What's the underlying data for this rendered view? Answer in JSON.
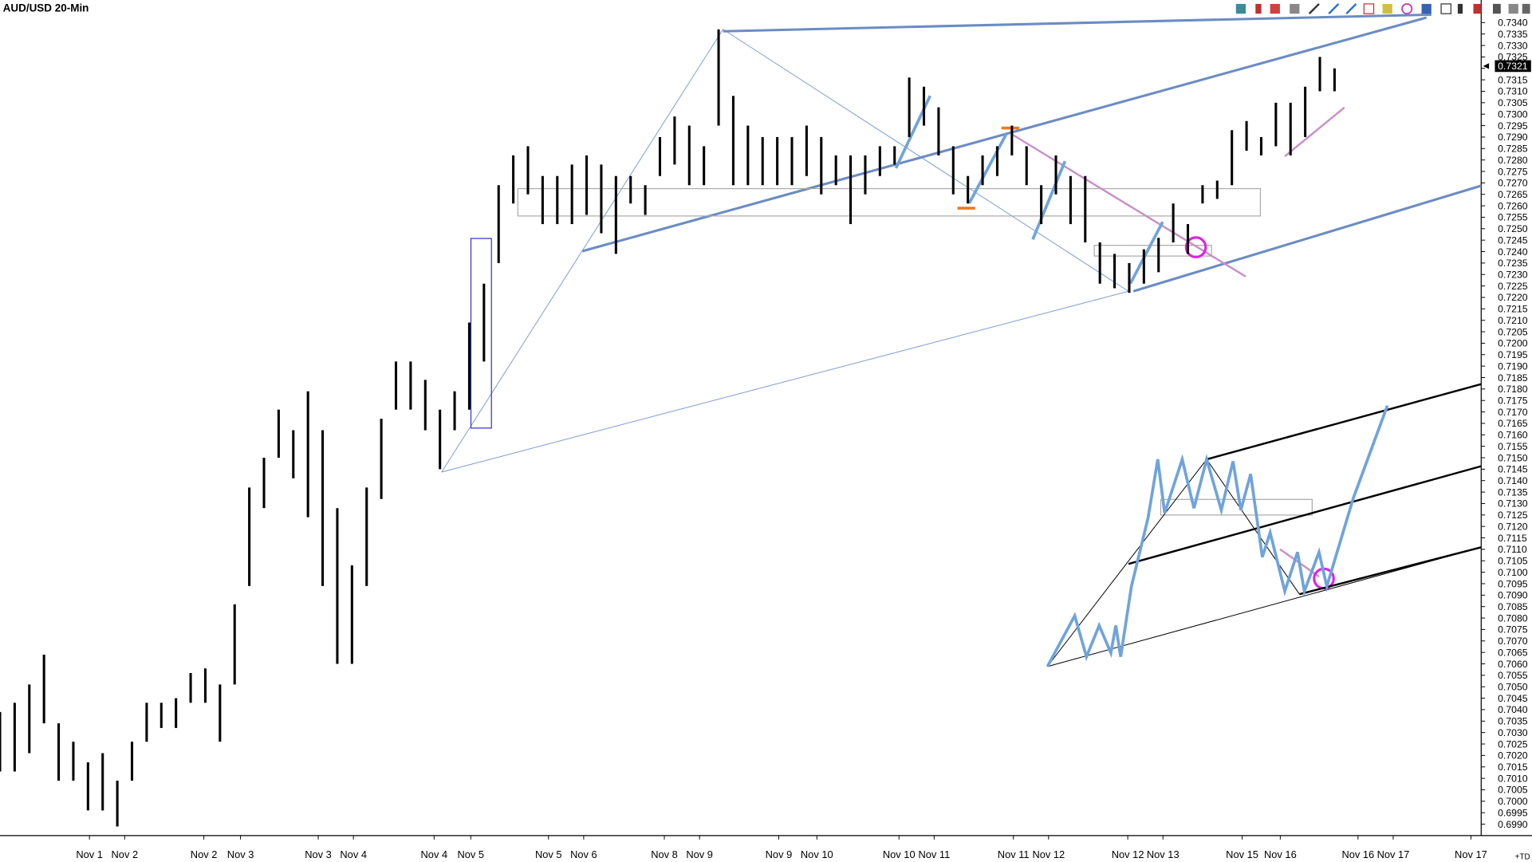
{
  "chart_data": {
    "type": "range",
    "title": "AUD/USD 20-Min",
    "high": [
      0.7039,
      0.7043,
      0.7051,
      0.7064,
      0.7034,
      0.7026,
      0.7017,
      0.7021,
      0.7009,
      0.7026,
      0.7043,
      0.7043,
      0.7045,
      0.7056,
      0.7058,
      0.7051,
      0.7086,
      0.7137,
      0.715,
      0.7171,
      0.7162,
      0.7179,
      0.7162,
      0.7128,
      0.7103,
      0.7137,
      0.7167,
      0.7192,
      0.7192,
      0.7184,
      0.7171,
      0.7179,
      0.7209,
      0.7226,
      0.7269,
      0.7282,
      0.7286,
      0.7273,
      0.7273,
      0.7278,
      0.7282,
      0.7278,
      0.7273,
      0.7273,
      0.7269,
      0.729,
      0.7299,
      0.7295,
      0.7286,
      0.7337,
      0.7308,
      0.7295,
      0.729,
      0.729,
      0.729,
      0.7295,
      0.729,
      0.7282,
      0.7282,
      0.7282,
      0.7286,
      0.7286,
      0.7316,
      0.7312,
      0.7303,
      0.7286,
      0.7273,
      0.7282,
      0.7286,
      0.7295,
      0.7286,
      0.7269,
      0.7282,
      0.7273,
      0.7273,
      0.7244,
      0.7239,
      0.7235,
      0.7241,
      0.7246,
      0.7261,
      0.7252,
      0.7269,
      0.7271,
      0.7293,
      0.7297,
      0.729,
      0.7305,
      0.7305,
      0.7312,
      0.7325,
      0.732
    ],
    "low": [
      0.7013,
      0.7013,
      0.7021,
      0.7034,
      0.7009,
      0.7009,
      0.6996,
      0.6996,
      0.6989,
      0.7009,
      0.7026,
      0.7032,
      0.7032,
      0.7043,
      0.7043,
      0.7026,
      0.7051,
      0.7094,
      0.7128,
      0.715,
      0.7141,
      0.7124,
      0.7094,
      0.706,
      0.706,
      0.7094,
      0.7132,
      0.7171,
      0.7171,
      0.7162,
      0.7145,
      0.7162,
      0.7171,
      0.7192,
      0.7235,
      0.7261,
      0.7265,
      0.7252,
      0.7252,
      0.7252,
      0.7256,
      0.7248,
      0.7239,
      0.7261,
      0.7256,
      0.7273,
      0.7278,
      0.7269,
      0.7269,
      0.7295,
      0.7269,
      0.7269,
      0.7269,
      0.7269,
      0.7269,
      0.7273,
      0.7265,
      0.7269,
      0.7252,
      0.7265,
      0.7273,
      0.7278,
      0.729,
      0.7295,
      0.7282,
      0.7265,
      0.7261,
      0.7269,
      0.7273,
      0.7282,
      0.7269,
      0.7252,
      0.7265,
      0.7252,
      0.7244,
      0.7226,
      0.7224,
      0.7222,
      0.7226,
      0.7231,
      0.7244,
      0.7239,
      0.7261,
      0.7263,
      0.7269,
      0.7284,
      0.7282,
      0.7286,
      0.7282,
      0.729,
      0.731,
      0.731
    ],
    "color": "#000000",
    "xlim": [
      0,
      101
    ],
    "xticks": [
      {
        "value": 6.1,
        "label": "Nov 1"
      },
      {
        "value": 8.5,
        "label": "Nov 2"
      },
      {
        "value": 13.9,
        "label": "Nov 2"
      },
      {
        "value": 16.4,
        "label": "Nov 3"
      },
      {
        "value": 21.7,
        "label": "Nov 3"
      },
      {
        "value": 24.1,
        "label": "Nov 4"
      },
      {
        "value": 29.6,
        "label": "Nov 4"
      },
      {
        "value": 32.1,
        "label": "Nov 5"
      },
      {
        "value": 37.4,
        "label": "Nov 5"
      },
      {
        "value": 39.8,
        "label": "Nov 6"
      },
      {
        "value": 45.3,
        "label": "Nov 8"
      },
      {
        "value": 47.7,
        "label": "Nov 9"
      },
      {
        "value": 53.1,
        "label": "Nov 9"
      },
      {
        "value": 55.7,
        "label": "Nov 10"
      },
      {
        "value": 61.3,
        "label": "Nov 10"
      },
      {
        "value": 63.7,
        "label": "Nov 11"
      },
      {
        "value": 69.1,
        "label": "Nov 11"
      },
      {
        "value": 71.5,
        "label": "Nov 12"
      },
      {
        "value": 76.9,
        "label": "Nov 12"
      },
      {
        "value": 79.3,
        "label": "Nov 13"
      },
      {
        "value": 84.7,
        "label": "Nov 15"
      },
      {
        "value": 87.3,
        "label": "Nov 16"
      },
      {
        "value": 92.6,
        "label": "Nov 16"
      },
      {
        "value": 95.0,
        "label": "Nov 17"
      },
      {
        "value": 100.3,
        "label": "Nov 17"
      }
    ],
    "ylim": [
      0.6985,
      0.7349
    ],
    "yticks": [
      {
        "value": 0.699,
        "label": "0.6990"
      },
      0.6995,
      {
        "value": 0.7,
        "label": "0.7000"
      },
      0.7005,
      {
        "value": 0.701,
        "label": "0.7010"
      },
      0.7015,
      {
        "value": 0.702,
        "label": "0.7020"
      },
      0.7025,
      {
        "value": 0.703,
        "label": "0.7030"
      },
      0.7035,
      {
        "value": 0.704,
        "label": "0.7040"
      },
      0.7045,
      {
        "value": 0.705,
        "label": "0.7050"
      },
      0.7055,
      {
        "value": 0.706,
        "label": "0.7060"
      },
      0.7065,
      {
        "value": 0.707,
        "label": "0.7070"
      },
      0.7075,
      {
        "value": 0.708,
        "label": "0.7080"
      },
      0.7085,
      {
        "value": 0.709,
        "label": "0.7090"
      },
      0.7095,
      {
        "value": 0.71,
        "label": "0.7100"
      },
      0.7105,
      {
        "value": 0.711,
        "label": "0.7110"
      },
      0.7115,
      {
        "value": 0.712,
        "label": "0.7120"
      },
      0.7125,
      {
        "value": 0.713,
        "label": "0.7130"
      },
      0.7135,
      {
        "value": 0.714,
        "label": "0.7140"
      },
      0.7145,
      {
        "value": 0.715,
        "label": "0.7150"
      },
      0.7155,
      {
        "value": 0.716,
        "label": "0.7160"
      },
      0.7165,
      {
        "value": 0.717,
        "label": "0.7170"
      },
      0.7175,
      {
        "value": 0.718,
        "label": "0.7180"
      },
      0.7185,
      {
        "value": 0.719,
        "label": "0.7190"
      },
      0.7195,
      {
        "value": 0.72,
        "label": "0.7200"
      },
      0.7205,
      {
        "value": 0.721,
        "label": "0.7210"
      },
      0.7215,
      {
        "value": 0.722,
        "label": "0.7220"
      },
      0.7225,
      {
        "value": 0.723,
        "label": "0.7230"
      },
      0.7235,
      {
        "value": 0.724,
        "label": "0.7240"
      },
      0.7245,
      {
        "value": 0.725,
        "label": "0.7250"
      },
      0.7255,
      {
        "value": 0.726,
        "label": "0.7260"
      },
      0.7265,
      {
        "value": 0.727,
        "label": "0.7270"
      },
      0.7275,
      {
        "value": 0.728,
        "label": "0.7280"
      },
      0.7285,
      {
        "value": 0.729,
        "label": "0.7290"
      },
      0.7295,
      {
        "value": 0.73,
        "label": "0.7300"
      },
      0.7305,
      {
        "value": 0.731,
        "label": "0.7310"
      },
      0.7315,
      {
        "value": 0.732,
        "label": "0.7320"
      },
      0.7325,
      {
        "value": 0.733,
        "label": "0.7330"
      },
      0.7335,
      {
        "value": 0.734,
        "label": "0.7340"
      }
    ],
    "last_price": 0.7321,
    "corner_label": "+TD"
  }
}
